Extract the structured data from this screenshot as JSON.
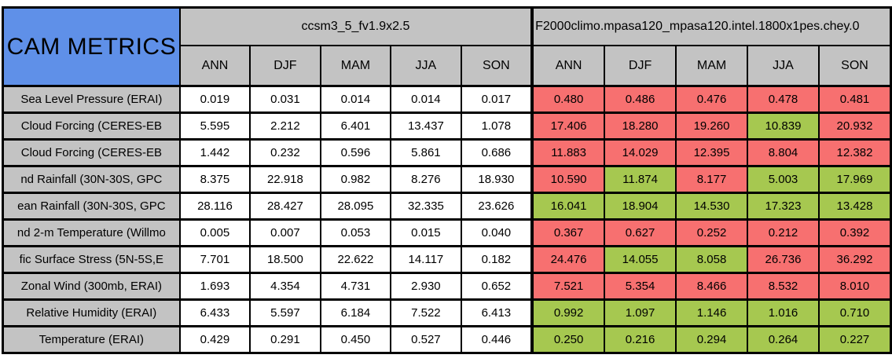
{
  "title": "CAM METRICS",
  "colors": {
    "blue": "#5f90e8",
    "gray": "#c3c3c3",
    "red": "#f77070",
    "green": "#a6c850"
  },
  "groups": [
    {
      "label": "ccsm3_5_fv1.9x2.5",
      "seasons": [
        "ANN",
        "DJF",
        "MAM",
        "JJA",
        "SON"
      ]
    },
    {
      "label": "F2000climo.mpasa120_mpasa120.intel.1800x1pes.chey.0",
      "seasons": [
        "ANN",
        "DJF",
        "MAM",
        "JJA",
        "SON"
      ]
    }
  ],
  "rows": [
    {
      "label": "Sea Level Pressure (ERAI)",
      "left": [
        "0.019",
        "0.031",
        "0.014",
        "0.014",
        "0.017"
      ],
      "right": [
        {
          "value": "0.480",
          "status": "red"
        },
        {
          "value": "0.486",
          "status": "red"
        },
        {
          "value": "0.476",
          "status": "red"
        },
        {
          "value": "0.478",
          "status": "red"
        },
        {
          "value": "0.481",
          "status": "red"
        }
      ]
    },
    {
      "label": "Cloud Forcing (CERES-EB",
      "left": [
        "5.595",
        "2.212",
        "6.401",
        "13.437",
        "1.078"
      ],
      "right": [
        {
          "value": "17.406",
          "status": "red"
        },
        {
          "value": "18.280",
          "status": "red"
        },
        {
          "value": "19.260",
          "status": "red"
        },
        {
          "value": "10.839",
          "status": "green"
        },
        {
          "value": "20.932",
          "status": "red"
        }
      ]
    },
    {
      "label": "Cloud Forcing (CERES-EB",
      "left": [
        "1.442",
        "0.232",
        "0.596",
        "5.861",
        "0.686"
      ],
      "right": [
        {
          "value": "11.883",
          "status": "red"
        },
        {
          "value": "14.029",
          "status": "red"
        },
        {
          "value": "12.395",
          "status": "red"
        },
        {
          "value": "8.804",
          "status": "red"
        },
        {
          "value": "12.382",
          "status": "red"
        }
      ]
    },
    {
      "label": "nd Rainfall (30N-30S, GPC",
      "left": [
        "8.375",
        "22.918",
        "0.982",
        "8.276",
        "18.930"
      ],
      "right": [
        {
          "value": "10.590",
          "status": "red"
        },
        {
          "value": "11.874",
          "status": "green"
        },
        {
          "value": "8.177",
          "status": "red"
        },
        {
          "value": "5.003",
          "status": "green"
        },
        {
          "value": "17.969",
          "status": "green"
        }
      ]
    },
    {
      "label": "ean Rainfall (30N-30S, GPC",
      "left": [
        "28.116",
        "28.427",
        "28.095",
        "32.335",
        "23.626"
      ],
      "right": [
        {
          "value": "16.041",
          "status": "green"
        },
        {
          "value": "18.904",
          "status": "green"
        },
        {
          "value": "14.530",
          "status": "green"
        },
        {
          "value": "17.323",
          "status": "green"
        },
        {
          "value": "13.428",
          "status": "green"
        }
      ]
    },
    {
      "label": "nd 2-m Temperature (Willmo",
      "left": [
        "0.005",
        "0.007",
        "0.053",
        "0.015",
        "0.040"
      ],
      "right": [
        {
          "value": "0.367",
          "status": "red"
        },
        {
          "value": "0.627",
          "status": "red"
        },
        {
          "value": "0.252",
          "status": "red"
        },
        {
          "value": "0.212",
          "status": "red"
        },
        {
          "value": "0.392",
          "status": "red"
        }
      ]
    },
    {
      "label": "fic Surface Stress (5N-5S,E",
      "left": [
        "7.701",
        "18.500",
        "22.622",
        "14.117",
        "0.182"
      ],
      "right": [
        {
          "value": "24.476",
          "status": "red"
        },
        {
          "value": "14.055",
          "status": "green"
        },
        {
          "value": "8.058",
          "status": "green"
        },
        {
          "value": "26.736",
          "status": "red"
        },
        {
          "value": "36.292",
          "status": "red"
        }
      ]
    },
    {
      "label": "Zonal Wind (300mb, ERAI)",
      "left": [
        "1.693",
        "4.354",
        "4.731",
        "2.930",
        "0.652"
      ],
      "right": [
        {
          "value": "7.521",
          "status": "red"
        },
        {
          "value": "5.354",
          "status": "red"
        },
        {
          "value": "8.466",
          "status": "red"
        },
        {
          "value": "8.532",
          "status": "red"
        },
        {
          "value": "8.010",
          "status": "red"
        }
      ]
    },
    {
      "label": "Relative Humidity (ERAI)",
      "left": [
        "6.433",
        "5.597",
        "6.184",
        "7.522",
        "6.413"
      ],
      "right": [
        {
          "value": "0.992",
          "status": "green"
        },
        {
          "value": "1.097",
          "status": "green"
        },
        {
          "value": "1.146",
          "status": "green"
        },
        {
          "value": "1.016",
          "status": "green"
        },
        {
          "value": "0.710",
          "status": "green"
        }
      ]
    },
    {
      "label": "Temperature (ERAI)",
      "left": [
        "0.429",
        "0.291",
        "0.450",
        "0.527",
        "0.446"
      ],
      "right": [
        {
          "value": "0.250",
          "status": "green"
        },
        {
          "value": "0.216",
          "status": "green"
        },
        {
          "value": "0.294",
          "status": "green"
        },
        {
          "value": "0.264",
          "status": "green"
        },
        {
          "value": "0.227",
          "status": "green"
        }
      ]
    }
  ]
}
